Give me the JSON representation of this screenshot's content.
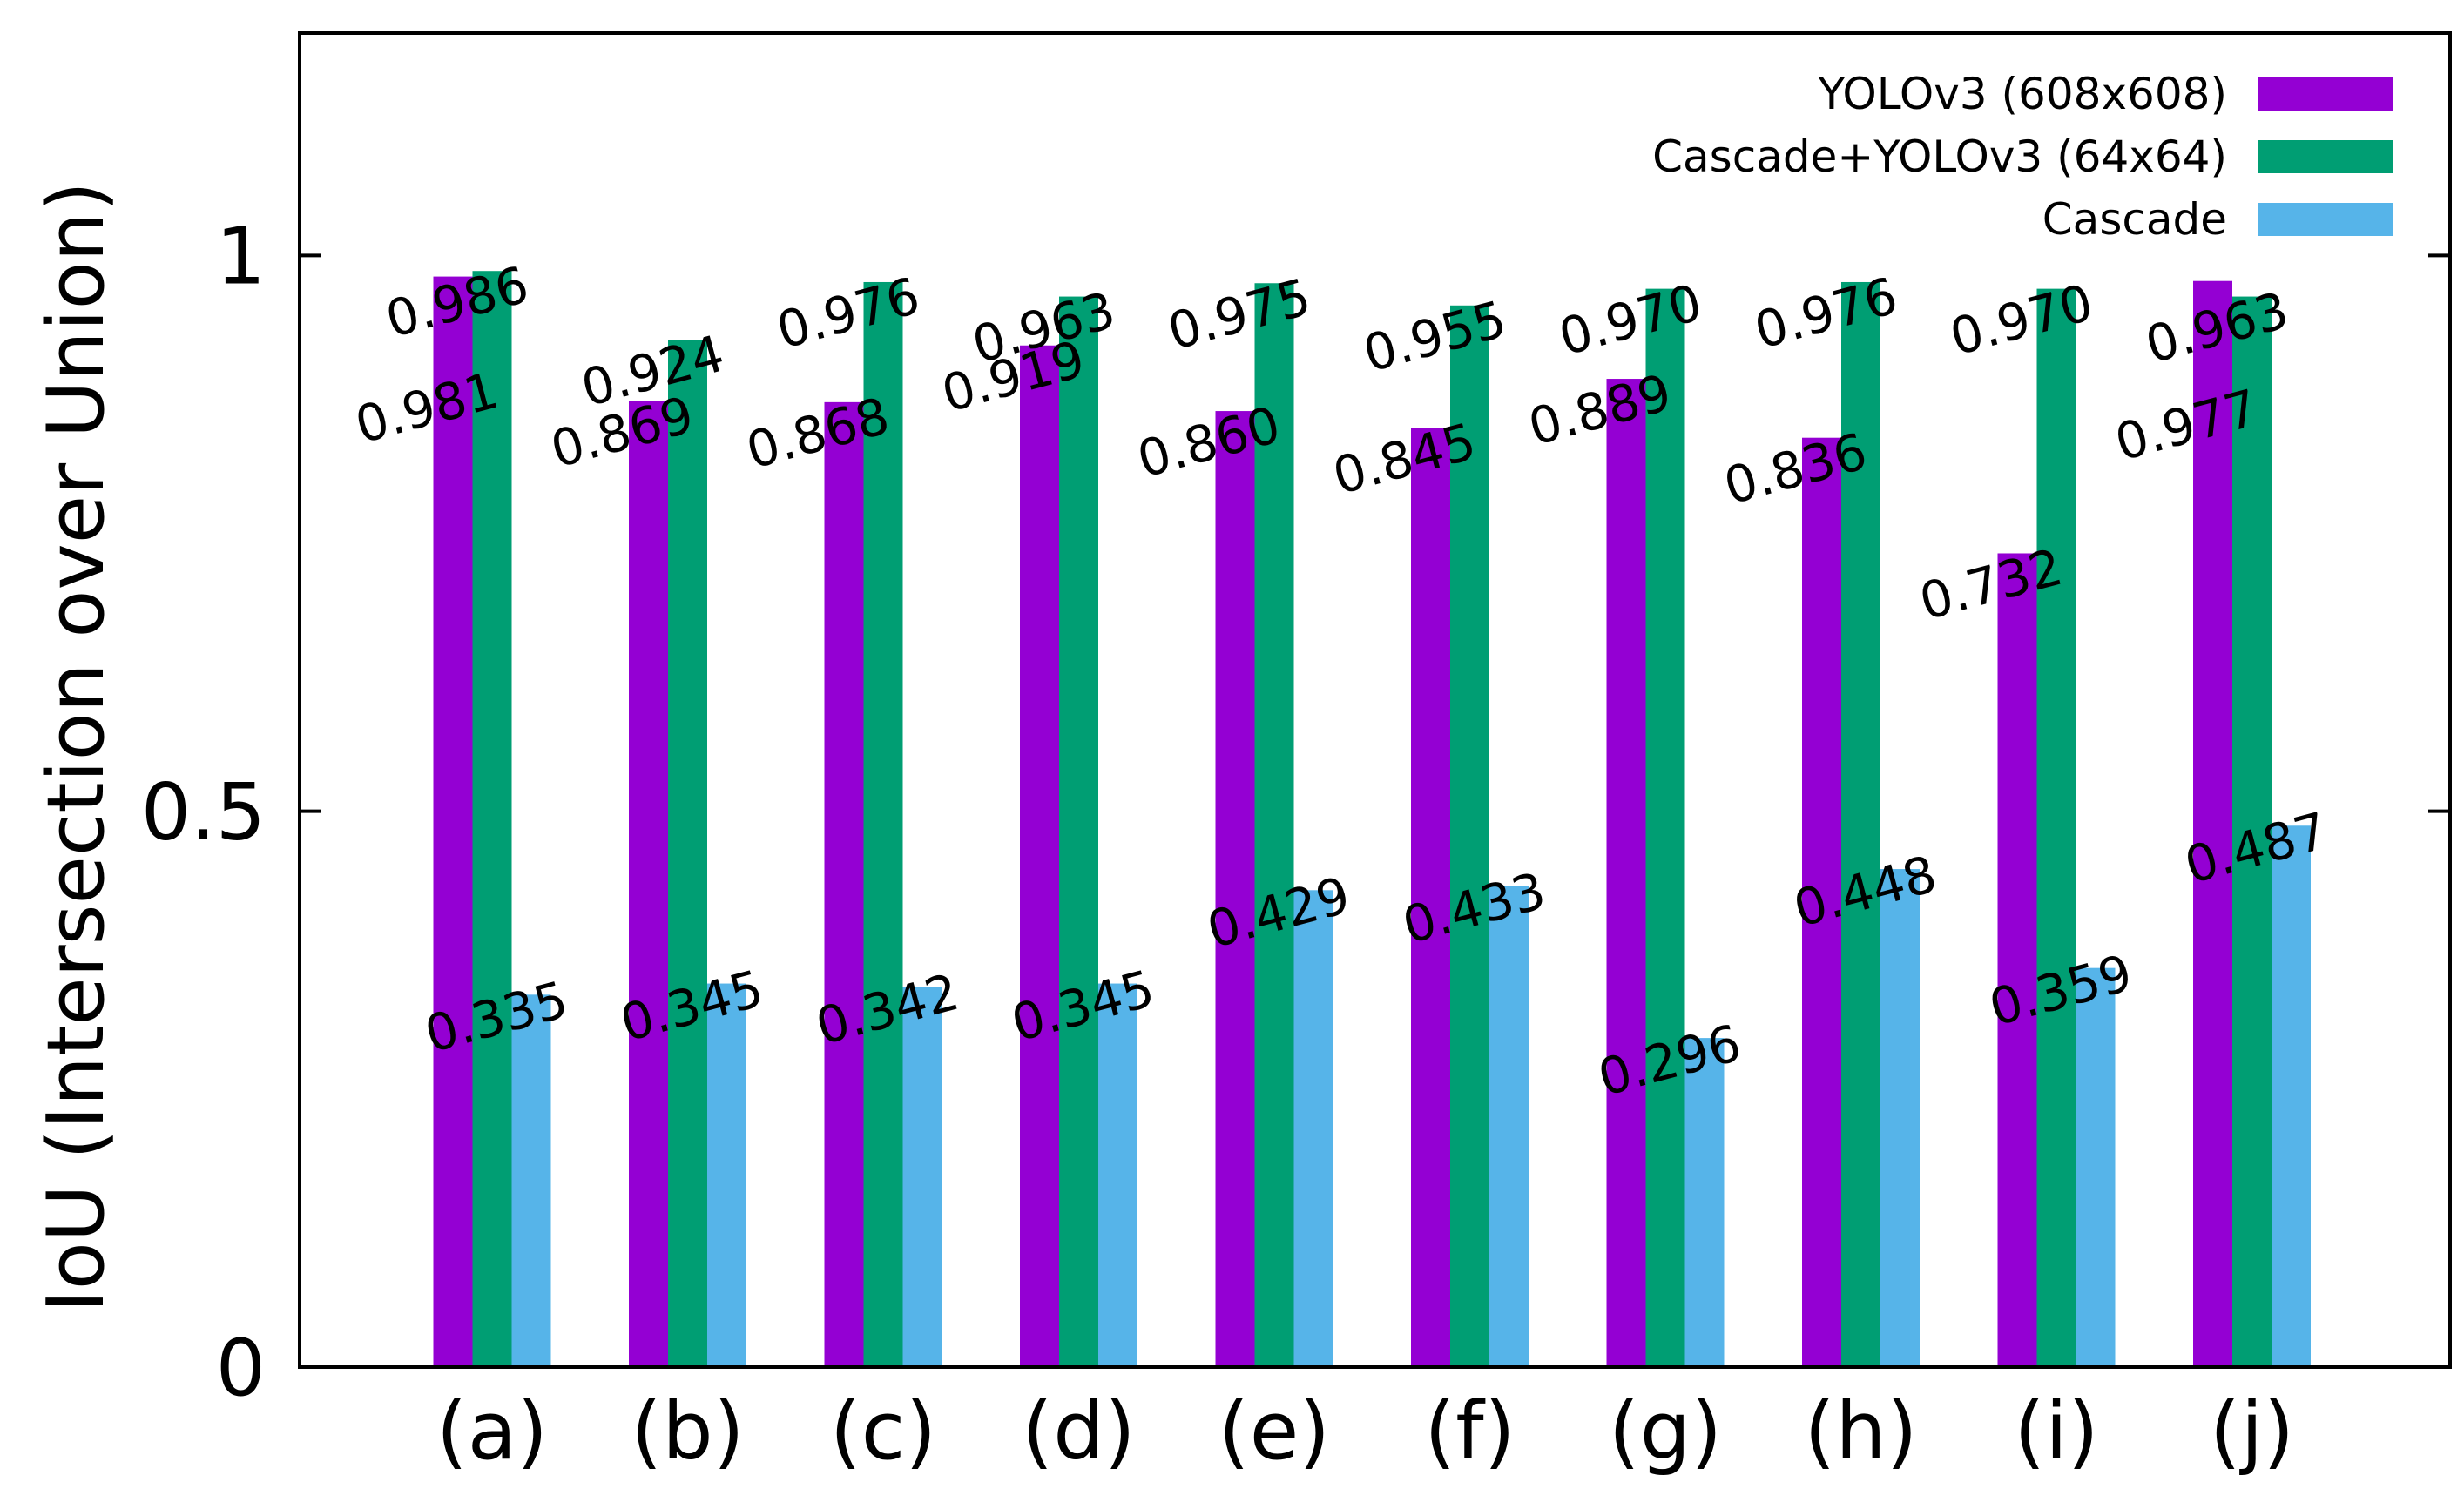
{
  "chart_data": {
    "type": "bar",
    "title": "",
    "xlabel": "",
    "ylabel": "IoU (Intersection over Union)",
    "ylim": [
      0,
      1.2
    ],
    "yticks": [
      {
        "value": 0,
        "label": "0"
      },
      {
        "value": 0.5,
        "label": "0.5"
      },
      {
        "value": 1,
        "label": "1"
      }
    ],
    "grid": false,
    "legend_position": "top-right",
    "categories": [
      "(a)",
      "(b)",
      "(c)",
      "(d)",
      "(e)",
      "(f)",
      "(g)",
      "(h)",
      "(i)",
      "(j)"
    ],
    "series": [
      {
        "name": "YOLOv3 (608x608)",
        "color": "#9400d3",
        "values": [
          0.981,
          0.869,
          0.868,
          0.919,
          0.86,
          0.845,
          0.889,
          0.836,
          0.732,
          0.977
        ],
        "labels": [
          "0.981",
          "0.869",
          "0.868",
          "0.919",
          "0.860",
          "0.845",
          "0.889",
          "0.836",
          "0.732",
          "0.977"
        ]
      },
      {
        "name": "Cascade+YOLOv3 (64x64)",
        "color": "#009e73",
        "values": [
          0.986,
          0.924,
          0.976,
          0.963,
          0.975,
          0.955,
          0.97,
          0.976,
          0.97,
          0.963
        ],
        "labels": [
          "0.986",
          "0.924",
          "0.976",
          "0.963",
          "0.975",
          "0.955",
          "0.970",
          "0.976",
          "0.970",
          "0.963"
        ]
      },
      {
        "name": "Cascade",
        "color": "#56b4e9",
        "values": [
          0.335,
          0.345,
          0.342,
          0.345,
          0.429,
          0.433,
          0.296,
          0.448,
          0.359,
          0.487
        ],
        "labels": [
          "0.335",
          "0.345",
          "0.342",
          "0.345",
          "0.429",
          "0.433",
          "0.296",
          "0.448",
          "0.359",
          "0.487"
        ]
      }
    ]
  }
}
